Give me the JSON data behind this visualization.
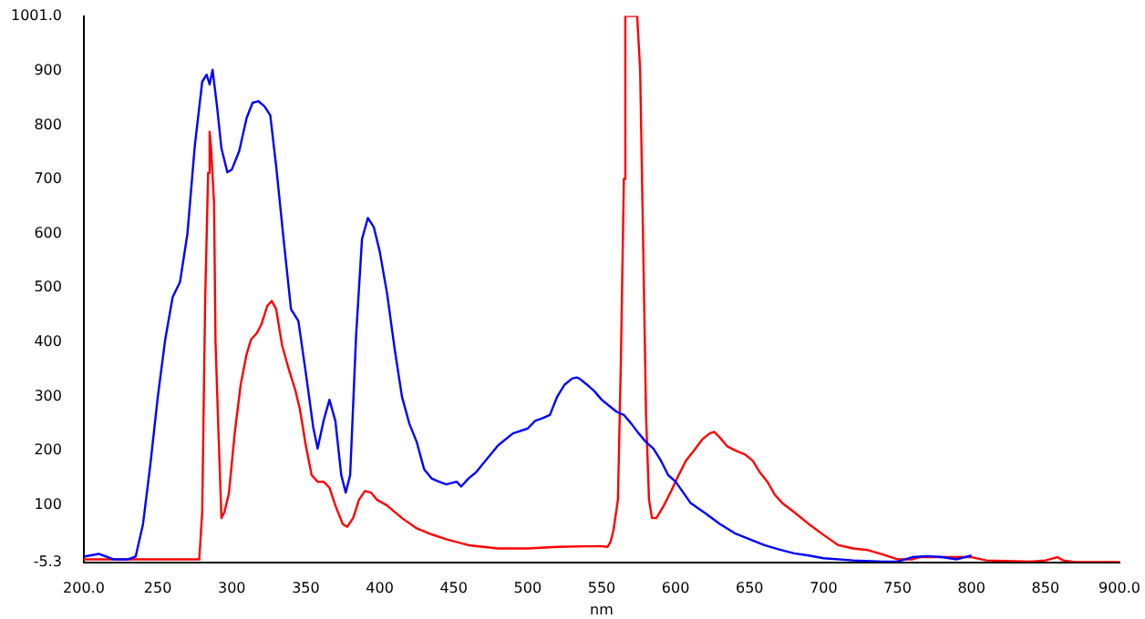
{
  "chart_data": {
    "type": "line",
    "xlabel": "nm",
    "xlim": [
      200,
      900
    ],
    "xticks": [
      {
        "value": 200,
        "label": "200.0"
      },
      250,
      300,
      350,
      400,
      450,
      500,
      550,
      600,
      650,
      700,
      750,
      800,
      850,
      {
        "value": 900,
        "label": "900.0"
      }
    ],
    "ylim": [
      -5.3,
      1001
    ],
    "yticks": [
      {
        "value": -5.3,
        "label": "-5.3"
      },
      100,
      200,
      300,
      400,
      500,
      600,
      700,
      800,
      900,
      {
        "value": 1001,
        "label": "1001.0"
      }
    ],
    "grid": false,
    "legend": false,
    "marker": "none",
    "line_style": "solid",
    "series": [
      {
        "color": "#0000ff",
        "x": [
          200,
          210,
          220,
          230,
          235,
          240,
          245,
          250,
          255,
          260,
          265,
          270,
          275,
          280,
          283,
          285,
          287,
          290,
          293,
          297,
          300,
          305,
          310,
          314,
          318,
          322,
          326,
          330,
          335,
          340,
          345,
          350,
          355,
          358,
          362,
          366,
          370,
          374,
          377,
          380,
          384,
          388,
          392,
          396,
          400,
          405,
          410,
          415,
          420,
          425,
          430,
          435,
          440,
          445,
          452,
          455,
          460,
          465,
          470,
          480,
          490,
          500,
          505,
          510,
          515,
          520,
          525,
          530,
          533,
          535,
          540,
          545,
          550,
          555,
          560,
          565,
          570,
          575,
          580,
          585,
          590,
          595,
          600,
          610,
          620,
          630,
          640,
          650,
          660,
          670,
          680,
          690,
          700,
          720,
          740,
          750,
          760,
          770,
          780,
          790,
          800
        ],
        "values": [
          5,
          10,
          0,
          0,
          5,
          65,
          176,
          300,
          405,
          483,
          511,
          600,
          762,
          880,
          893,
          875,
          902,
          835,
          757,
          713,
          718,
          752,
          813,
          841,
          844,
          835,
          818,
          724,
          590,
          461,
          439,
          344,
          244,
          204,
          255,
          294,
          255,
          155,
          123,
          155,
          411,
          590,
          629,
          612,
          567,
          489,
          389,
          300,
          250,
          216,
          166,
          149,
          143,
          138,
          143,
          134,
          149,
          160,
          177,
          210,
          232,
          241,
          255,
          260,
          266,
          300,
          322,
          333,
          335,
          333,
          322,
          310,
          294,
          283,
          272,
          266,
          250,
          232,
          216,
          204,
          182,
          155,
          143,
          104,
          85,
          65,
          48,
          37,
          26,
          18,
          11,
          7,
          2,
          -2,
          -4,
          -4,
          4,
          6,
          4,
          0,
          7
        ]
      },
      {
        "color": "#ff0000",
        "x": [
          200,
          250,
          278,
          280,
          282,
          284,
          285,
          286,
          288,
          289,
          291,
          293,
          295,
          298,
          302,
          306,
          310,
          313,
          317,
          320,
          324,
          327,
          330,
          334,
          338,
          343,
          346,
          350,
          354,
          358,
          362,
          366,
          370,
          375,
          378,
          382,
          386,
          390,
          394,
          398,
          405,
          415,
          425,
          435,
          445,
          460,
          480,
          500,
          520,
          540,
          550,
          554,
          556,
          558,
          561,
          563,
          565,
          566,
          574,
          576,
          578,
          580,
          582,
          584,
          587,
          592,
          597,
          602,
          607,
          612,
          618,
          623,
          626,
          630,
          635,
          640,
          647,
          652,
          657,
          662,
          667,
          672,
          680,
          690,
          700,
          710,
          720,
          730,
          740,
          750,
          760,
          765,
          780,
          800,
          810,
          840,
          850,
          858,
          862,
          870,
          900
        ],
        "values": [
          0,
          0,
          0,
          87,
          478,
          712,
          788,
          757,
          657,
          400,
          233,
          76,
          87,
          121,
          233,
          322,
          378,
          405,
          417,
          433,
          467,
          476,
          461,
          394,
          355,
          311,
          277,
          210,
          155,
          143,
          143,
          132,
          99,
          65,
          60,
          76,
          110,
          126,
          123,
          110,
          99,
          76,
          57,
          46,
          37,
          26,
          20,
          20,
          23,
          24,
          24,
          23,
          32,
          54,
          110,
          366,
          701,
          1001,
          1001,
          902,
          590,
          266,
          110,
          76,
          76,
          99,
          126,
          155,
          182,
          199,
          221,
          232,
          235,
          224,
          208,
          201,
          193,
          182,
          160,
          143,
          119,
          104,
          87,
          65,
          45,
          26,
          20,
          17,
          9,
          0,
          0,
          4,
          4,
          4,
          -2,
          -4,
          -2,
          4,
          -2,
          -5,
          -5
        ]
      }
    ]
  }
}
